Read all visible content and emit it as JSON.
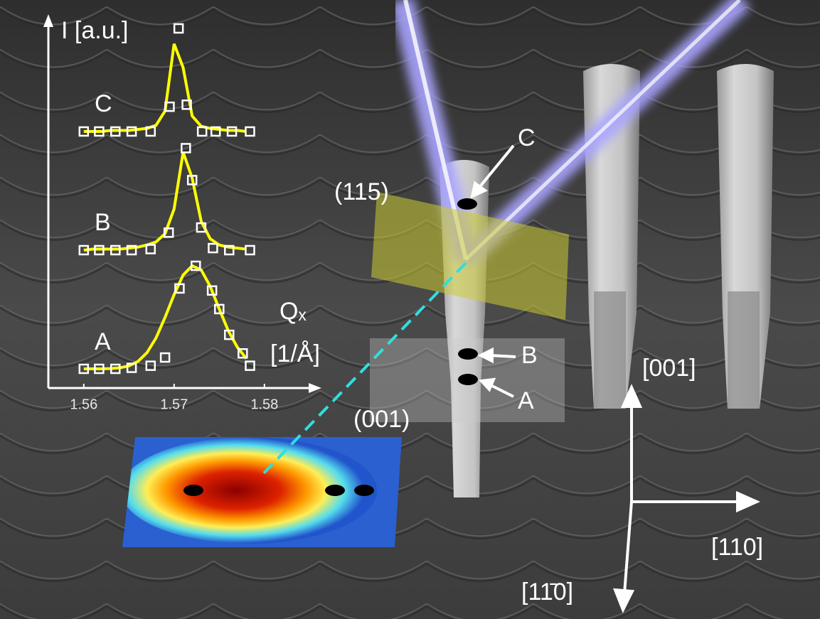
{
  "chart_data": {
    "type": "line",
    "y_label": "I [a.u.]",
    "x_label": "Qₓ",
    "x_unit": "[1/Å]",
    "xlim": [
      1.556,
      1.586
    ],
    "xticks": [
      1.56,
      1.57,
      1.58
    ],
    "fit_x": [
      1.56,
      1.561,
      1.562,
      1.563,
      1.564,
      1.565,
      1.566,
      1.567,
      1.568,
      1.569,
      1.57,
      1.571,
      1.572,
      1.573,
      1.574,
      1.575,
      1.576,
      1.577,
      1.578
    ],
    "series": [
      {
        "name": "A",
        "color": "#ffffff",
        "fit_color": "#ffff00",
        "x": [
          1.56,
          1.5617,
          1.5635,
          1.5653,
          1.5674,
          1.569,
          1.5706,
          1.5724,
          1.5742,
          1.575,
          1.5761,
          1.5776,
          1.5784
        ],
        "values": [
          0,
          0,
          0,
          0.01,
          0.03,
          0.11,
          0.78,
          1.0,
          0.76,
          0.58,
          0.33,
          0.15,
          0.03
        ],
        "fit": [
          0,
          0,
          0,
          0.003,
          0.01,
          0.029,
          0.072,
          0.157,
          0.3,
          0.5,
          0.72,
          0.91,
          1.0,
          0.96,
          0.8,
          0.58,
          0.37,
          0.21,
          0.1
        ]
      },
      {
        "name": "B",
        "color": "#ffffff",
        "fit_color": "#ffff00",
        "x": [
          1.56,
          1.5617,
          1.5635,
          1.5653,
          1.5674,
          1.5694,
          1.5713,
          1.572,
          1.573,
          1.5743,
          1.5761,
          1.5784
        ],
        "values": [
          0,
          0,
          0,
          0,
          0.01,
          0.17,
          0.99,
          0.68,
          0.22,
          0.02,
          0,
          0
        ],
        "fit": [
          0,
          0.01,
          0.01,
          0.01,
          0.01,
          0.02,
          0.03,
          0.05,
          0.08,
          0.16,
          0.4,
          0.95,
          0.7,
          0.28,
          0.11,
          0.05,
          0.03,
          0.02,
          0.01
        ]
      },
      {
        "name": "C",
        "color": "#ffffff",
        "fit_color": "#ffff00",
        "x": [
          1.56,
          1.5617,
          1.5635,
          1.5653,
          1.5674,
          1.5695,
          1.5705,
          1.5714,
          1.5731,
          1.5746,
          1.5764,
          1.5784
        ],
        "values": [
          0,
          0,
          0,
          0,
          0,
          0.24,
          1.0,
          0.26,
          0,
          0,
          0,
          0
        ],
        "fit": [
          0,
          0,
          0,
          0.01,
          0.01,
          0.01,
          0.02,
          0.03,
          0.06,
          0.2,
          0.85,
          0.62,
          0.15,
          0.05,
          0.03,
          0.02,
          0.01,
          0.01,
          0
        ]
      }
    ]
  },
  "annotations": {
    "plane_115": "(115)",
    "plane_001": "(001)",
    "point_c": "C",
    "point_b": "B",
    "point_a": "A",
    "dir_001": "[001]",
    "dir_110": "[110]",
    "dir_1m10": "[11̄0]"
  }
}
